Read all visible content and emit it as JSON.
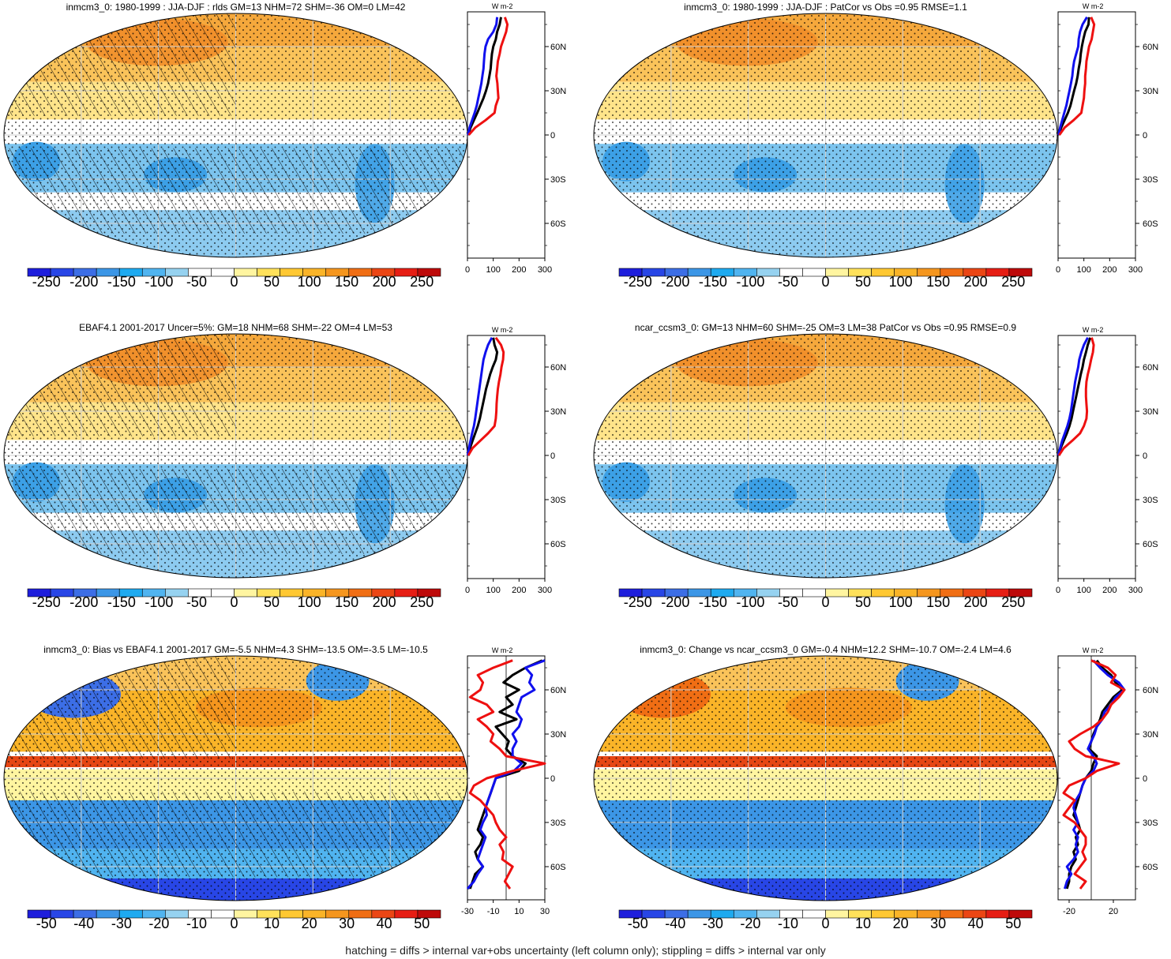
{
  "footer": "hatching = diffs > internal var+obs uncertainty (left column only); stippling = diffs > internal var only",
  "chart_data": [
    {
      "type": "heatmap",
      "title": "inmcm3_0: 1980-1999 : JJA-DJF : rlds GM=13 NHM=72 SHM=-36 OM=0 LM=42",
      "colorbar_labels": [
        "-250",
        "-200",
        "-150",
        "-100",
        "-50",
        "0",
        "50",
        "100",
        "150",
        "200",
        "250"
      ],
      "colorbar_range": [
        -275,
        275
      ],
      "zonal_units": "W m-2",
      "zonal_xticks": [
        "0",
        "100",
        "200",
        "300"
      ],
      "zonal_xlim": [
        0,
        300
      ],
      "lat_ticks": [
        "60N",
        "30N",
        "0",
        "30S",
        "60S"
      ],
      "zonal_profile": {
        "lat": [
          80,
          75,
          70,
          65,
          60,
          55,
          50,
          45,
          40,
          35,
          30,
          25,
          20,
          15,
          10,
          5,
          0
        ],
        "series": [
          {
            "color": "#000000",
            "values": [
              130,
              125,
              115,
              110,
              100,
              95,
              92,
              90,
              85,
              80,
              72,
              62,
              50,
              38,
              25,
              12,
              3
            ]
          },
          {
            "color": "#1010ee",
            "values": [
              115,
              112,
              100,
              80,
              70,
              66,
              64,
              62,
              58,
              54,
              48,
              42,
              36,
              28,
              18,
              8,
              2
            ]
          },
          {
            "color": "#ee1010",
            "values": [
              145,
              155,
              150,
              140,
              130,
              125,
              118,
              115,
              112,
              116,
              118,
              120,
              110,
              105,
              70,
              30,
              5
            ]
          }
        ]
      },
      "hatched": true
    },
    {
      "type": "heatmap",
      "title": "inmcm3_0: 1980-1999 : JJA-DJF : PatCor vs Obs =0.95 RMSE=1.1",
      "colorbar_labels": [
        "-250",
        "-200",
        "-150",
        "-100",
        "-50",
        "0",
        "50",
        "100",
        "150",
        "200",
        "250"
      ],
      "colorbar_range": [
        -275,
        275
      ],
      "zonal_units": "W m-2",
      "zonal_xticks": [
        "0",
        "100",
        "200",
        "300"
      ],
      "zonal_xlim": [
        0,
        300
      ],
      "lat_ticks": [
        "60N",
        "30N",
        "0",
        "30S",
        "60S"
      ],
      "zonal_profile": {
        "lat": [
          80,
          75,
          70,
          65,
          60,
          55,
          50,
          45,
          40,
          35,
          30,
          25,
          20,
          15,
          10,
          5,
          0
        ],
        "series": [
          {
            "color": "#000000",
            "values": [
              120,
              118,
              105,
              98,
              92,
              88,
              85,
              80,
              76,
              70,
              62,
              55,
              48,
              38,
              25,
              12,
              3
            ]
          },
          {
            "color": "#1010ee",
            "values": [
              112,
              95,
              85,
              80,
              78,
              70,
              62,
              58,
              55,
              50,
              44,
              38,
              32,
              24,
              16,
              8,
              2
            ]
          },
          {
            "color": "#ee1010",
            "values": [
              128,
              140,
              135,
              130,
              120,
              115,
              110,
              108,
              105,
              105,
              102,
              100,
              95,
              90,
              60,
              25,
              5
            ]
          }
        ]
      },
      "hatched": false
    },
    {
      "type": "heatmap",
      "title": "EBAF4.1 2001-2017 Uncer=5%: GM=18 NHM=68 SHM=-22 OM=4 LM=53",
      "colorbar_labels": [
        "-250",
        "-200",
        "-150",
        "-100",
        "-50",
        "0",
        "50",
        "100",
        "150",
        "200",
        "250"
      ],
      "colorbar_range": [
        -275,
        275
      ],
      "zonal_units": "W m-2",
      "zonal_xticks": [
        "0",
        "100",
        "200",
        "300"
      ],
      "zonal_xlim": [
        0,
        300
      ],
      "lat_ticks": [
        "60N",
        "30N",
        "0",
        "30S",
        "60S"
      ],
      "zonal_profile": {
        "lat": [
          80,
          75,
          70,
          65,
          60,
          55,
          50,
          45,
          40,
          35,
          30,
          25,
          20,
          15,
          10,
          5,
          0
        ],
        "series": [
          {
            "color": "#000000",
            "values": [
              100,
              105,
              115,
              110,
              98,
              88,
              80,
              72,
              66,
              60,
              54,
              48,
              40,
              30,
              20,
              10,
              2
            ]
          },
          {
            "color": "#1010ee",
            "values": [
              95,
              80,
              70,
              62,
              58,
              54,
              50,
              46,
              42,
              38,
              34,
              30,
              25,
              18,
              12,
              6,
              1
            ]
          },
          {
            "color": "#ee1010",
            "values": [
              110,
              130,
              140,
              138,
              132,
              128,
              122,
              118,
              115,
              113,
              112,
              110,
              105,
              80,
              50,
              20,
              3
            ]
          }
        ]
      },
      "hatched": true
    },
    {
      "type": "heatmap",
      "title": "ncar_ccsm3_0: GM=13 NHM=60 SHM=-25 OM=3 LM=38 PatCor vs Obs =0.95 RMSE=0.9",
      "colorbar_labels": [
        "-250",
        "-200",
        "-150",
        "-100",
        "-50",
        "0",
        "50",
        "100",
        "150",
        "200",
        "250"
      ],
      "colorbar_range": [
        -275,
        275
      ],
      "zonal_units": "W m-2",
      "zonal_xticks": [
        "0",
        "100",
        "200",
        "300"
      ],
      "zonal_xlim": [
        0,
        300
      ],
      "lat_ticks": [
        "60N",
        "30N",
        "0",
        "30S",
        "60S"
      ],
      "zonal_profile": {
        "lat": [
          80,
          75,
          70,
          65,
          60,
          55,
          50,
          45,
          40,
          35,
          30,
          25,
          20,
          15,
          10,
          5,
          0
        ],
        "series": [
          {
            "color": "#000000",
            "values": [
              125,
              115,
              108,
              100,
              95,
              88,
              82,
              76,
              70,
              64,
              58,
              52,
              44,
              34,
              22,
              10,
              2
            ]
          },
          {
            "color": "#1010ee",
            "values": [
              115,
              100,
              90,
              82,
              78,
              72,
              66,
              62,
              58,
              54,
              50,
              44,
              36,
              26,
              16,
              8,
              1
            ]
          },
          {
            "color": "#ee1010",
            "values": [
              130,
              138,
              135,
              128,
              122,
              115,
              110,
              108,
              108,
              110,
              112,
              110,
              100,
              85,
              55,
              22,
              3
            ]
          }
        ]
      },
      "hatched": false
    },
    {
      "type": "heatmap",
      "title": "inmcm3_0: Bias vs EBAF4.1 2001-2017 GM=-5.5 NHM=4.3 SHM=-13.5 OM=-3.5 LM=-10.5",
      "colorbar_labels": [
        "-50",
        "-40",
        "-30",
        "-20",
        "-10",
        "0",
        "10",
        "20",
        "30",
        "40",
        "50"
      ],
      "colorbar_range": [
        -55,
        55
      ],
      "zonal_units": "W m-2",
      "zonal_xticks": [
        "-30",
        "-10",
        "10",
        "30"
      ],
      "zonal_xlim": [
        -30,
        30
      ],
      "lat_ticks": [
        "60N",
        "30N",
        "0",
        "30S",
        "60S"
      ],
      "zonal_profile": {
        "lat": [
          80,
          75,
          70,
          65,
          60,
          55,
          50,
          45,
          40,
          35,
          30,
          25,
          20,
          15,
          10,
          5,
          0,
          -5,
          -10,
          -15,
          -20,
          -25,
          -30,
          -35,
          -40,
          -45,
          -50,
          -55,
          -60,
          -65,
          -70,
          -75
        ],
        "series": [
          {
            "color": "#000000",
            "values": [
              28,
              15,
              5,
              -2,
              10,
              0,
              5,
              -5,
              8,
              -8,
              -3,
              2,
              0,
              5,
              15,
              10,
              -8,
              -10,
              -12,
              -14,
              -16,
              -18,
              -20,
              -22,
              -18,
              -20,
              -24,
              -22,
              -18,
              -24,
              -26,
              -28
            ]
          },
          {
            "color": "#1010ee",
            "values": [
              30,
              15,
              20,
              18,
              22,
              12,
              10,
              8,
              12,
              10,
              5,
              8,
              5,
              5,
              12,
              6,
              -8,
              -10,
              -12,
              -14,
              -16,
              -15,
              -18,
              -20,
              -16,
              -18,
              -20,
              -22,
              -18,
              -22,
              -25,
              -30
            ]
          },
          {
            "color": "#ee1010",
            "values": [
              5,
              -10,
              -22,
              -18,
              -20,
              -28,
              -15,
              -10,
              -22,
              -15,
              -10,
              -12,
              -5,
              0,
              30,
              5,
              -15,
              -25,
              -28,
              -20,
              -15,
              -10,
              -8,
              -5,
              0,
              -5,
              -2,
              -3,
              5,
              2,
              -1,
              3
            ]
          }
        ]
      },
      "hatched": true
    },
    {
      "type": "heatmap",
      "title": "inmcm3_0: Change vs ncar_ccsm3_0 GM=-0.4 NHM=12.2 SHM=-10.7 OM=-2.4 LM=4.6",
      "colorbar_labels": [
        "-50",
        "-40",
        "-30",
        "-20",
        "-10",
        "0",
        "10",
        "20",
        "30",
        "40",
        "50"
      ],
      "colorbar_range": [
        -55,
        55
      ],
      "zonal_units": "W m-2",
      "zonal_xticks": [
        "-20",
        "20"
      ],
      "zonal_xlim": [
        -30,
        40
      ],
      "lat_ticks": [
        "60N",
        "30N",
        "0",
        "30S",
        "60S"
      ],
      "zonal_profile": {
        "lat": [
          80,
          75,
          70,
          65,
          60,
          55,
          50,
          45,
          40,
          35,
          30,
          25,
          20,
          15,
          10,
          5,
          0,
          -5,
          -10,
          -15,
          -20,
          -25,
          -30,
          -35,
          -40,
          -45,
          -50,
          -55,
          -60,
          -65,
          -70,
          -75
        ],
        "series": [
          {
            "color": "#000000",
            "values": [
              5,
              10,
              18,
              22,
              28,
              20,
              15,
              10,
              8,
              5,
              2,
              0,
              -2,
              5,
              2,
              0,
              -5,
              -8,
              -10,
              -12,
              -14,
              -16,
              -12,
              -10,
              -14,
              -12,
              -16,
              -14,
              -18,
              -20,
              -20,
              -22
            ]
          },
          {
            "color": "#1010ee",
            "values": [
              2,
              8,
              15,
              25,
              30,
              22,
              18,
              12,
              10,
              5,
              3,
              0,
              -3,
              2,
              5,
              2,
              -5,
              -8,
              -10,
              -14,
              -16,
              -14,
              -12,
              -16,
              -12,
              -14,
              -12,
              -16,
              -22,
              -18,
              -22,
              -24
            ]
          },
          {
            "color": "#ee1010",
            "values": [
              0,
              15,
              22,
              18,
              30,
              25,
              18,
              15,
              10,
              2,
              -10,
              -20,
              -15,
              -5,
              25,
              5,
              -5,
              -20,
              -25,
              -15,
              -20,
              -25,
              -15,
              -10,
              -5,
              -5,
              -8,
              -5,
              -10,
              -15,
              -5,
              -10
            ]
          }
        ]
      },
      "hatched": false
    }
  ]
}
